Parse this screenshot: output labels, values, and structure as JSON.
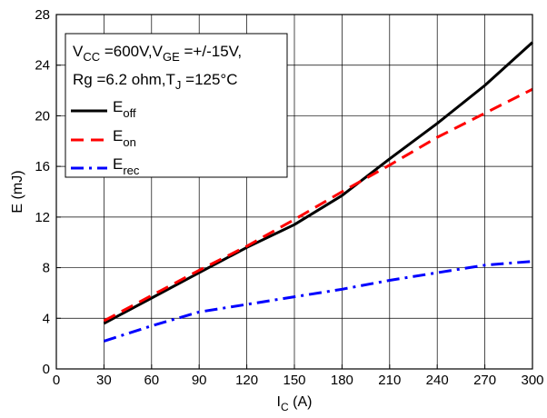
{
  "chart_data": {
    "type": "line",
    "xlabel": {
      "main": "I",
      "sub": "C",
      "unit": " (A)"
    },
    "ylabel": "E (mJ)",
    "xlim": [
      0,
      300
    ],
    "ylim": [
      0,
      28
    ],
    "x_ticks": [
      "0",
      "30",
      "60",
      "90",
      "120",
      "150",
      "180",
      "210",
      "240",
      "270",
      "300"
    ],
    "y_ticks": [
      "0",
      "4",
      "8",
      "12",
      "16",
      "20",
      "24",
      "28"
    ],
    "annotation": {
      "line1": [
        {
          "t": "V",
          "sub": false
        },
        {
          "t": "CC",
          "sub": true
        },
        {
          "t": " =600V,V",
          "sub": false
        },
        {
          "t": "GE",
          "sub": true
        },
        {
          "t": " =+/-15V,",
          "sub": false
        }
      ],
      "line2": [
        {
          "t": "Rg =6.2 ohm,T",
          "sub": false
        },
        {
          "t": "J",
          "sub": true
        },
        {
          "t": " =125°C",
          "sub": false
        }
      ]
    },
    "legend_position": "top-left",
    "series": [
      {
        "name": "E",
        "name_sub": "off",
        "color": "#000000",
        "dash": "solid",
        "x": [
          30,
          60,
          90,
          120,
          150,
          180,
          210,
          240,
          270,
          300
        ],
        "y": [
          3.6,
          5.6,
          7.6,
          9.6,
          11.4,
          13.7,
          16.6,
          19.4,
          22.4,
          25.8
        ]
      },
      {
        "name": "E",
        "name_sub": "on",
        "color": "#ff0000",
        "dash": "dashed",
        "x": [
          30,
          60,
          90,
          120,
          150,
          180,
          210,
          240,
          270,
          300
        ],
        "y": [
          3.8,
          5.8,
          7.8,
          9.7,
          11.8,
          14.0,
          16.1,
          18.3,
          20.2,
          22.1
        ]
      },
      {
        "name": "E",
        "name_sub": "rec",
        "color": "#0000ff",
        "dash": "dashdot",
        "x": [
          30,
          60,
          90,
          120,
          150,
          180,
          210,
          240,
          270,
          300
        ],
        "y": [
          2.2,
          3.4,
          4.5,
          5.1,
          5.7,
          6.3,
          7.0,
          7.6,
          8.2,
          8.5
        ]
      }
    ]
  }
}
